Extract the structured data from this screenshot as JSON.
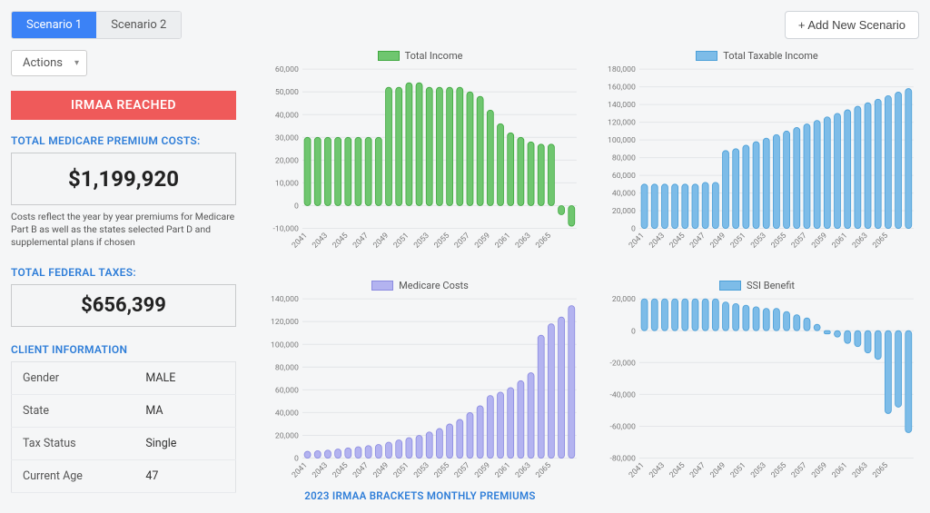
{
  "tabs": {
    "scenario1": "Scenario 1",
    "scenario2": "Scenario 2"
  },
  "add_scenario": "+ Add New Scenario",
  "actions_label": "Actions",
  "alert": "IRMAA REACHED",
  "premium": {
    "label": "TOTAL MEDICARE PREMIUM COSTS:",
    "value": "$1,199,920",
    "note": "Costs reflect the year by year premiums for Medicare Part B as well as the states selected Part D and supplemental plans if chosen"
  },
  "taxes": {
    "label": "TOTAL FEDERAL TAXES:",
    "value": "$656,399"
  },
  "client_info": {
    "label": "CLIENT INFORMATION",
    "rows": [
      {
        "k": "Gender",
        "v": "MALE"
      },
      {
        "k": "State",
        "v": "MA"
      },
      {
        "k": "Tax Status",
        "v": "Single"
      },
      {
        "k": "Current Age",
        "v": "47"
      }
    ]
  },
  "brackets_title": "2023 IRMAA BRACKETS MONTHLY PREMIUMS",
  "years": [
    "2041",
    "2043",
    "2045",
    "2047",
    "2049",
    "2051",
    "2053",
    "2055",
    "2057",
    "2059",
    "2061",
    "2063",
    "2065"
  ],
  "charts": {
    "total_income": {
      "legend": "Total Income",
      "fill": "#6fc66f",
      "stroke": "#3fa83f",
      "ymin": -10000,
      "ymax": 60000,
      "ystep": 10000,
      "values": [
        30000,
        30000,
        30000,
        30000,
        30000,
        30000,
        30000,
        30000,
        52000,
        52000,
        54000,
        54000,
        52000,
        52000,
        52000,
        52000,
        50000,
        48000,
        42000,
        36000,
        32000,
        30000,
        28000,
        27000,
        27000,
        -4000,
        -9000
      ]
    },
    "total_taxable": {
      "legend": "Total Taxable Income",
      "fill": "#7dbce8",
      "stroke": "#4a9fd8",
      "ymin": 0,
      "ymax": 180000,
      "ystep": 20000,
      "values": [
        50000,
        50000,
        50000,
        50000,
        50000,
        50000,
        52000,
        52000,
        88000,
        90000,
        94000,
        98000,
        102000,
        106000,
        110000,
        114000,
        118000,
        122000,
        126000,
        130000,
        134000,
        138000,
        142000,
        146000,
        150000,
        154000,
        158000
      ]
    },
    "medicare_costs": {
      "legend": "Medicare Costs",
      "fill": "#b3b3f0",
      "stroke": "#8a8ae0",
      "ymin": 0,
      "ymax": 140000,
      "ystep": 20000,
      "values": [
        6000,
        6500,
        7000,
        8000,
        9000,
        10000,
        11000,
        12000,
        14000,
        16000,
        18000,
        20000,
        23000,
        26000,
        30000,
        34000,
        40000,
        46000,
        55000,
        58000,
        62000,
        68000,
        75000,
        108000,
        118000,
        124000,
        134000
      ]
    },
    "ssi_benefit": {
      "legend": "SSI Benefit",
      "fill": "#7dbce8",
      "stroke": "#4a9fd8",
      "ymin": -80000,
      "ymax": 20000,
      "ystep": 20000,
      "values": [
        20000,
        20000,
        20000,
        20000,
        20000,
        20000,
        20000,
        20000,
        18000,
        17000,
        16000,
        15000,
        14000,
        14000,
        12000,
        10000,
        8000,
        4000,
        -2000,
        -4000,
        -8000,
        -10000,
        -14000,
        -18000,
        -52000,
        -48000,
        -64000
      ]
    }
  }
}
